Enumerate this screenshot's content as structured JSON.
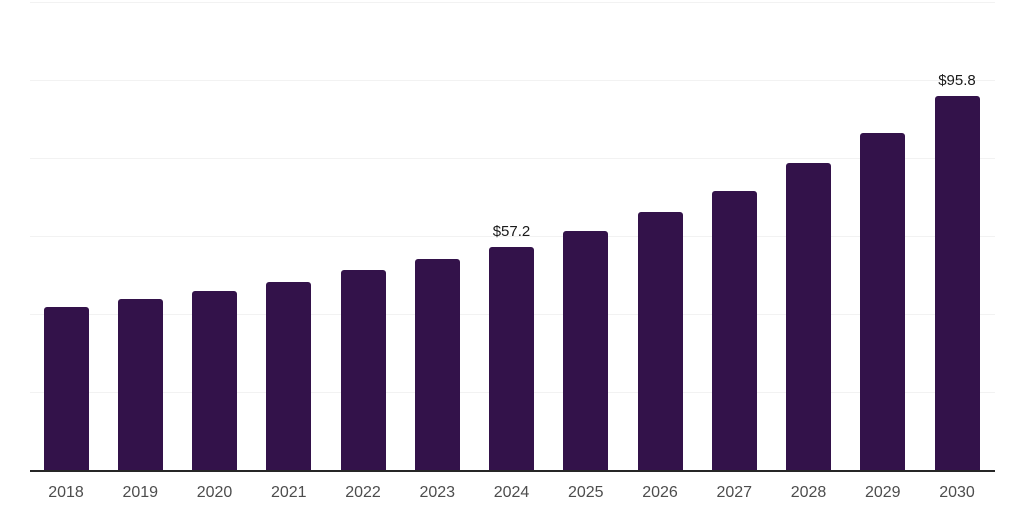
{
  "chart_data": {
    "type": "bar",
    "title": "",
    "xlabel": "",
    "ylabel": "",
    "categories": [
      "2018",
      "2019",
      "2020",
      "2021",
      "2022",
      "2023",
      "2024",
      "2025",
      "2026",
      "2027",
      "2028",
      "2029",
      "2030"
    ],
    "values": [
      41.7,
      43.8,
      45.9,
      48.2,
      51.3,
      54.1,
      57.2,
      61.4,
      66.2,
      71.5,
      78.7,
      86.4,
      95.8
    ],
    "data_labels": [
      null,
      null,
      null,
      null,
      null,
      null,
      "$57.2",
      null,
      null,
      null,
      null,
      null,
      "$95.8"
    ],
    "ylim": [
      0,
      120
    ],
    "gridline_step": 20,
    "grid": true,
    "legend": false,
    "y_axis_tick_labels_visible": false,
    "colors": {
      "bar": "#33124a",
      "gridline": "#f2f2f2",
      "axis_line": "#262626",
      "x_tick_label": "#4d4d4d",
      "data_label": "#1a1a1a",
      "background": "#ffffff"
    }
  }
}
